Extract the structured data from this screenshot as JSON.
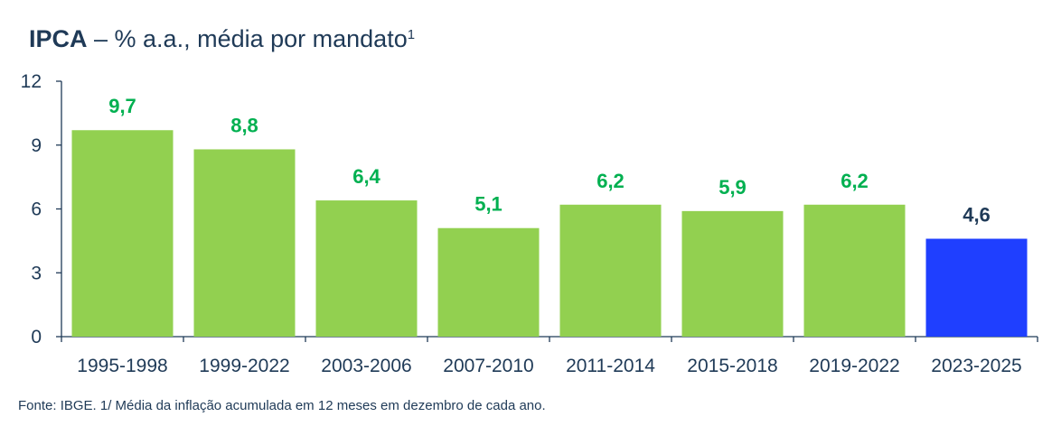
{
  "chart_data": {
    "type": "bar",
    "title_bold": "IPCA",
    "title_rest": " – % a.a., média por mandato",
    "title_sup": "1",
    "categories": [
      "1995-1998",
      "1999-2022",
      "2003-2006",
      "2007-2010",
      "2011-2014",
      "2015-2018",
      "2019-2022",
      "2023-2025"
    ],
    "values": [
      9.7,
      8.8,
      6.4,
      5.1,
      6.2,
      5.9,
      6.2,
      4.6
    ],
    "value_labels": [
      "9,7",
      "8,8",
      "6,4",
      "5,1",
      "6,2",
      "5,9",
      "6,2",
      "4,6"
    ],
    "highlight_index": 7,
    "ylim": [
      0,
      12
    ],
    "yticks": [
      0,
      3,
      6,
      9,
      12
    ],
    "ytick_labels": [
      "0",
      "3",
      "6",
      "9",
      "12"
    ],
    "xlabel": "",
    "ylabel": "",
    "grid": false,
    "colors": {
      "bar": "#92d050",
      "bar_highlight": "#1f3fff",
      "label": "#00b050",
      "label_highlight": "#1f3a57",
      "axis": "#1f3a57"
    }
  },
  "footnote": "Fonte: IBGE. 1/ Média da inflação acumulada em 12 meses em dezembro de cada ano."
}
